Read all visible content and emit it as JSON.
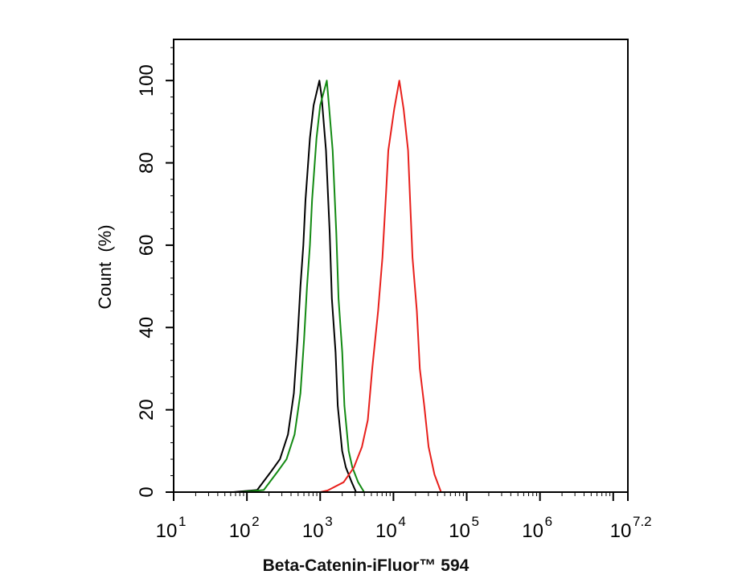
{
  "chart_data": {
    "type": "line",
    "title": "",
    "xlabel": "Beta-Catenin-iFluor™ 594",
    "ylabel": "Count  (%)",
    "x_scale": "log10",
    "xlim": [
      10,
      15848932
    ],
    "ylim": [
      0,
      110
    ],
    "grid": false,
    "legend": "none",
    "x_ticks": [
      {
        "base": "10",
        "exp": "1",
        "value": 10
      },
      {
        "base": "10",
        "exp": "2",
        "value": 100
      },
      {
        "base": "10",
        "exp": "3",
        "value": 1000
      },
      {
        "base": "10",
        "exp": "4",
        "value": 10000
      },
      {
        "base": "10",
        "exp": "5",
        "value": 100000
      },
      {
        "base": "10",
        "exp": "6",
        "value": 1000000
      },
      {
        "base": "10",
        "exp": "7.2",
        "value": 15848932
      }
    ],
    "y_ticks": [
      "0",
      "20",
      "40",
      "60",
      "80",
      "100"
    ],
    "series": [
      {
        "color": "#000000",
        "x": [
          65,
          138,
          214,
          282,
          363,
          437,
          490,
          537,
          589,
          631,
          724,
          813,
          977,
          1047,
          1202,
          1349,
          1445,
          1622,
          1738,
          1995,
          2239,
          2692,
          3090
        ],
        "y": [
          0,
          0.5,
          5,
          8,
          14,
          24,
          37,
          50,
          60,
          71,
          86,
          94,
          100,
          96,
          83,
          63,
          47,
          34,
          21,
          10,
          6,
          2.4,
          0
        ]
      },
      {
        "color": "#138a13",
        "x": [
          80,
          170,
          263,
          347,
          447,
          537,
          603,
          661,
          724,
          776,
          891,
          1000,
          1230,
          1290,
          1480,
          1660,
          1780,
          2000,
          2140,
          2450,
          2750,
          3300,
          3980
        ],
        "y": [
          0,
          0.5,
          5,
          8,
          14,
          24,
          37,
          50,
          60,
          71,
          86,
          94,
          100,
          96,
          83,
          63,
          47,
          34,
          21,
          10,
          6,
          2.4,
          0
        ]
      },
      {
        "color": "#e8201c",
        "x": [
          1000,
          1259,
          2089,
          2884,
          3715,
          4467,
          5129,
          6166,
          7079,
          7943,
          8511,
          10233,
          12023,
          13804,
          15849,
          16982,
          18197,
          20893,
          22909,
          26303,
          30200,
          36308,
          44668
        ],
        "y": [
          0,
          0.4,
          2.4,
          6,
          11,
          17.5,
          30,
          44,
          57,
          73,
          83,
          93,
          100,
          93,
          83,
          70,
          57,
          44,
          30,
          21,
          11,
          4.3,
          0
        ]
      }
    ]
  }
}
